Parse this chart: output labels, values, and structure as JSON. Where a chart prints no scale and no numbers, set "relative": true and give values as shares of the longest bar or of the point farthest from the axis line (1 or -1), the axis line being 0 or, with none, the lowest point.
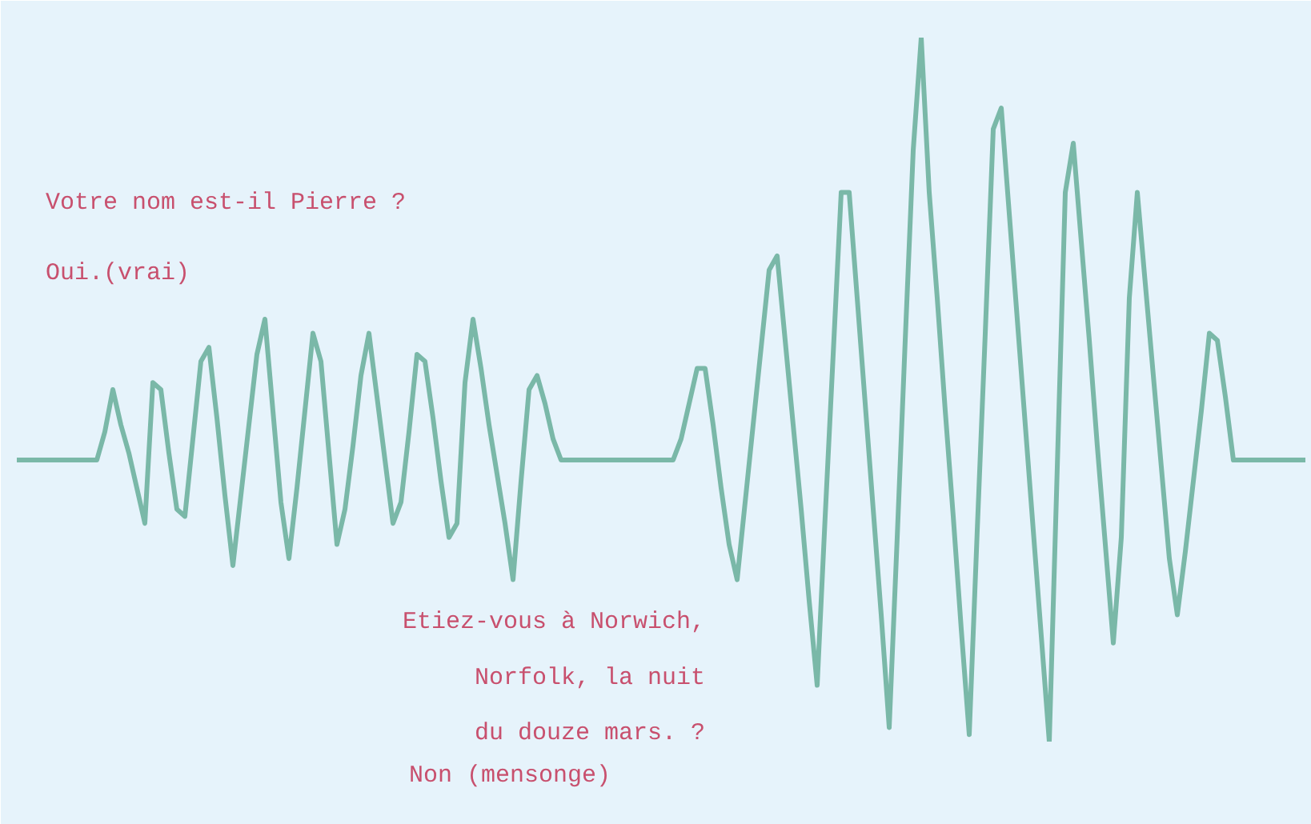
{
  "chart_data": {
    "type": "line",
    "relative": true,
    "categories": [
      null,
      null,
      null,
      null,
      null,
      null,
      null,
      null,
      null,
      null,
      null,
      null,
      null,
      null,
      null,
      null,
      null,
      null,
      null,
      null,
      null,
      null,
      null,
      null,
      null,
      null,
      null,
      null,
      null,
      null,
      null,
      null,
      null,
      null,
      null,
      null,
      null,
      null,
      null,
      null,
      null,
      null,
      null,
      null,
      null,
      null,
      null,
      null,
      null,
      null,
      null,
      null,
      null,
      null,
      null,
      null,
      null,
      null,
      null,
      null,
      null,
      null,
      null,
      null,
      null,
      null,
      null,
      null,
      null,
      null,
      null,
      null,
      null,
      null,
      null,
      null,
      null,
      null,
      null,
      null,
      null,
      null,
      null,
      null,
      null,
      null,
      null,
      null,
      null,
      null,
      null,
      null,
      null,
      null,
      null,
      null,
      null,
      null,
      null,
      null,
      null,
      null,
      null,
      null,
      null,
      null,
      null,
      null,
      null,
      null,
      null,
      null,
      null,
      null,
      null,
      null,
      null,
      null,
      null,
      null,
      null,
      null,
      null,
      null,
      null,
      null,
      null,
      null,
      null,
      null,
      null,
      null,
      null,
      null,
      null,
      null,
      null,
      null,
      null,
      null,
      null,
      null,
      null,
      null,
      null,
      null,
      null,
      null,
      null,
      null,
      null,
      null,
      null,
      null,
      null,
      null,
      null,
      null,
      null,
      null,
      null,
      null
    ],
    "series": [
      {
        "color": "#7ab8a8",
        "values": [
          0.4,
          0.4,
          0.4,
          0.4,
          0.4,
          0.4,
          0.4,
          0.4,
          0.4,
          0.4,
          0.4,
          0.44,
          0.5,
          0.45,
          0.41,
          0.36,
          0.31,
          0.51,
          0.5,
          0.41,
          0.33,
          0.32,
          0.43,
          0.54,
          0.56,
          0.46,
          0.35,
          0.25,
          0.35,
          0.45,
          0.55,
          0.6,
          0.47,
          0.34,
          0.26,
          0.36,
          0.47,
          0.58,
          0.54,
          0.41,
          0.28,
          0.33,
          0.42,
          0.52,
          0.58,
          0.49,
          0.4,
          0.31,
          0.34,
          0.44,
          0.55,
          0.54,
          0.46,
          0.37,
          0.29,
          0.31,
          0.51,
          0.6,
          0.53,
          0.45,
          0.38,
          0.31,
          0.23,
          0.37,
          0.5,
          0.52,
          0.48,
          0.43,
          0.4,
          0.4,
          0.4,
          0.4,
          0.4,
          0.4,
          0.4,
          0.4,
          0.4,
          0.4,
          0.4,
          0.4,
          0.4,
          0.4,
          0.4,
          0.43,
          0.48,
          0.53,
          0.53,
          0.45,
          0.36,
          0.28,
          0.23,
          0.34,
          0.45,
          0.56,
          0.67,
          0.69,
          0.57,
          0.45,
          0.33,
          0.2,
          0.08,
          0.32,
          0.55,
          0.78,
          0.78,
          0.63,
          0.48,
          0.33,
          0.18,
          0.02,
          0.29,
          0.57,
          0.84,
          1,
          0.78,
          0.63,
          0.47,
          0.32,
          0.16,
          0.01,
          0.3,
          0.58,
          0.87,
          0.9,
          0.75,
          0.6,
          0.45,
          0.3,
          0.15,
          0,
          0.39,
          0.78,
          0.85,
          0.71,
          0.57,
          0.42,
          0.28,
          0.14,
          0.29,
          0.63,
          0.78,
          0.65,
          0.52,
          0.39,
          0.26,
          0.18,
          0.27,
          0.37,
          0.47,
          0.58,
          0.57,
          0.49,
          0.4,
          0.4,
          0.4,
          0.4,
          0.4,
          0.4,
          0.4,
          0.4,
          0.4,
          0.4
        ]
      }
    ],
    "line_style": "solid",
    "annotations": [
      "Votre nom est-il Pierre ?",
      "Oui.(vrai)",
      "Etiez-vous à Norwich,\nNorfolk, la nuit\ndu douze mars. ?",
      "Non (mensonge)"
    ]
  }
}
